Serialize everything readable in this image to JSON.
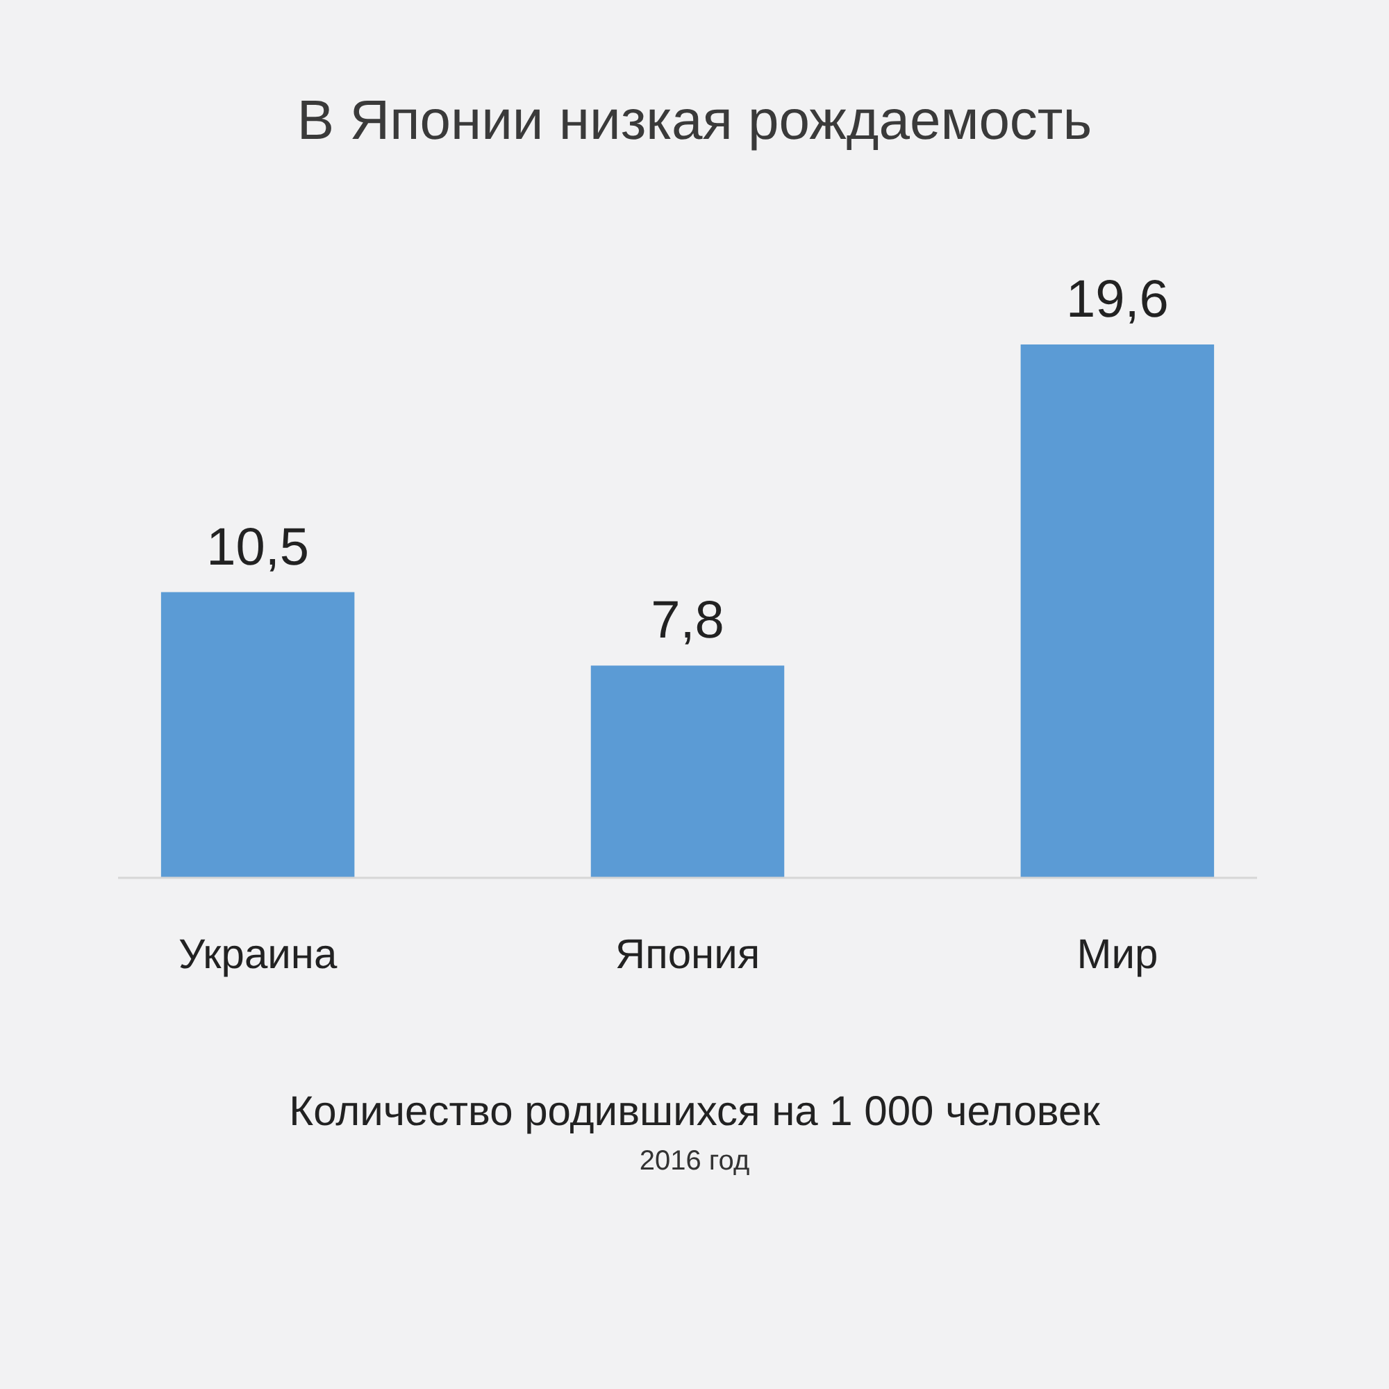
{
  "chart_data": {
    "type": "bar",
    "title": "В Японии низкая рождаемость",
    "categories": [
      "Украина",
      "Япония",
      "Мир"
    ],
    "values": [
      10.5,
      7.8,
      19.6
    ],
    "value_labels": [
      "10,5",
      "7,8",
      "19,6"
    ],
    "color": "#5b9bd5",
    "xlabel": "Количество родившихся на 1 000 человек",
    "annotations": [
      "2016 год"
    ]
  }
}
